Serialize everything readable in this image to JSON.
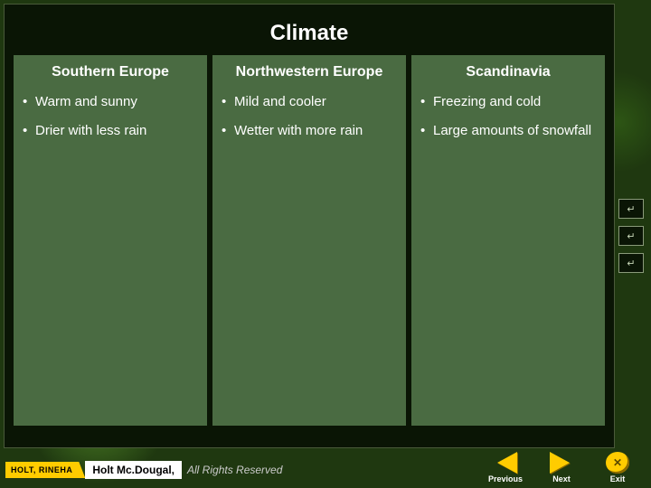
{
  "slide": {
    "title": "Climate",
    "columns": [
      {
        "heading": "Southern Europe",
        "bullets": [
          "Warm and sunny",
          "Drier with less rain"
        ]
      },
      {
        "heading": "Northwestern Europe",
        "bullets": [
          "Mild and cooler",
          "Wetter with more rain"
        ]
      },
      {
        "heading": "Scandinavia",
        "bullets": [
          "Freezing and cold",
          "Large amounts of snowfall"
        ]
      }
    ],
    "column_bg": "#4a6b42",
    "content_bg": "#0a1505",
    "text_color": "#ffffff"
  },
  "footer": {
    "publisher_left": "HOLT, RINEHA",
    "publisher_center": "Holt Mc.Dougal,",
    "rights": "All Rights Reserved"
  },
  "nav": {
    "previous": "Previous",
    "next": "Next",
    "exit": "Exit"
  },
  "right_icons": {
    "glyph": "↵"
  },
  "colors": {
    "accent_yellow": "#ffcc00"
  }
}
